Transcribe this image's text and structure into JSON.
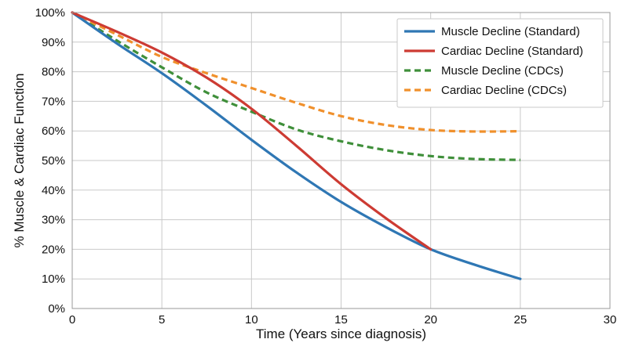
{
  "chart_data": {
    "type": "line",
    "title": "",
    "xlabel": "Time (Years since diagnosis)",
    "ylabel": "% Muscle & Cardiac Function",
    "xlim": [
      0,
      30
    ],
    "ylim": [
      0,
      100
    ],
    "xticks": [
      0,
      5,
      10,
      15,
      20,
      25,
      30
    ],
    "xtick_labels": [
      "0",
      "5",
      "10",
      "15",
      "20",
      "25",
      "30"
    ],
    "yticks": [
      0,
      10,
      20,
      30,
      40,
      50,
      60,
      70,
      80,
      90,
      100
    ],
    "ytick_labels": [
      "0%",
      "10%",
      "20%",
      "30%",
      "40%",
      "50%",
      "60%",
      "70%",
      "80%",
      "90%",
      "100%"
    ],
    "grid": true,
    "legend_position": "top-right",
    "series": [
      {
        "name": "Muscle Decline (Standard)",
        "color": "#2f77b4",
        "dash": "solid",
        "x": [
          0,
          2.5,
          5,
          7.5,
          10,
          12.5,
          15,
          17.5,
          20,
          22.5,
          25
        ],
        "y": [
          100,
          89.5,
          79.5,
          68.5,
          57,
          46,
          36,
          27.5,
          20,
          14.7,
          10
        ]
      },
      {
        "name": "Cardiac Decline (Standard)",
        "color": "#cd3b33",
        "dash": "solid",
        "x": [
          0,
          2.5,
          5,
          7.5,
          10,
          12.5,
          15,
          17.5,
          20
        ],
        "y": [
          100,
          93.5,
          86.5,
          78,
          67.5,
          55,
          42,
          30.5,
          20
        ]
      },
      {
        "name": "Muscle Decline (CDCs)",
        "color": "#3f8f3a",
        "dash": "dashed",
        "x": [
          0,
          2.5,
          5,
          7.5,
          10,
          12.5,
          15,
          17.5,
          20,
          22.5,
          25
        ],
        "y": [
          100,
          90.5,
          81.5,
          73,
          66.5,
          60.5,
          56.5,
          53.5,
          51.5,
          50.5,
          50.2
        ]
      },
      {
        "name": "Cardiac Decline (CDCs)",
        "color": "#f0902c",
        "dash": "dashed",
        "x": [
          0,
          2.5,
          5,
          7.5,
          10,
          12.5,
          15,
          17.5,
          20,
          22.5,
          25
        ],
        "y": [
          100,
          92.5,
          85,
          79.5,
          74.5,
          69.5,
          65,
          62,
          60.3,
          59.8,
          59.9
        ]
      }
    ]
  }
}
